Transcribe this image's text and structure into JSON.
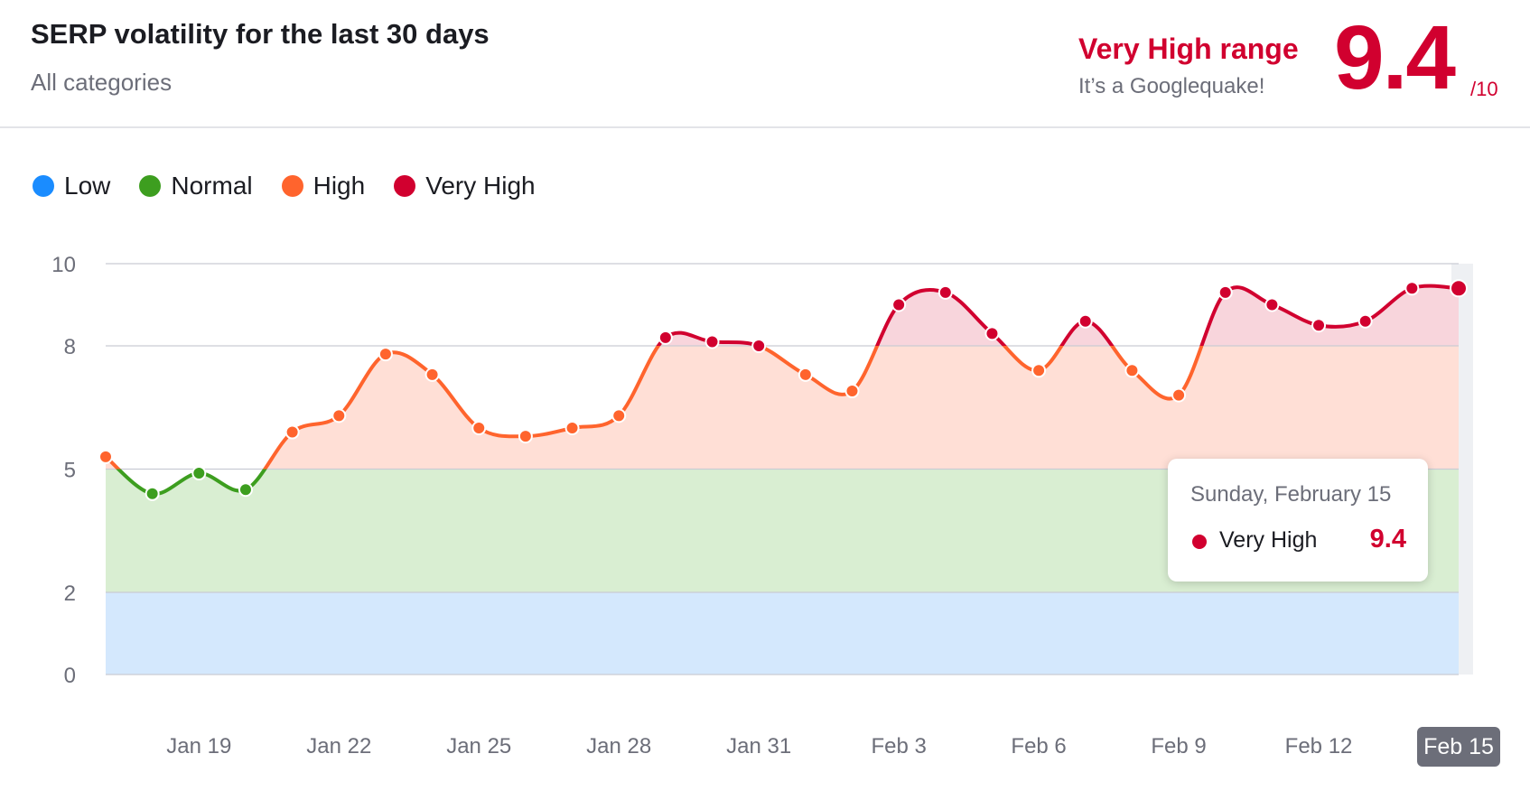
{
  "header": {
    "title": "SERP volatility for the last 30 days",
    "subtitle": "All categories",
    "range_label": "Very High range",
    "range_desc": "It’s a Googlequake!",
    "score": "9.4",
    "score_max": "/10"
  },
  "legend": [
    {
      "label": "Low",
      "color": "#1a8cff"
    },
    {
      "label": "Normal",
      "color": "#3d9e1f"
    },
    {
      "label": "High",
      "color": "#ff642d"
    },
    {
      "label": "Very High",
      "color": "#d1002f"
    }
  ],
  "tooltip": {
    "date": "Sunday, February 15",
    "label": "Very High",
    "value": "9.4"
  },
  "chart_data": {
    "type": "area",
    "title": "SERP volatility for the last 30 days",
    "xlabel": "",
    "ylabel": "",
    "ylim": [
      0,
      10
    ],
    "y_ticks": [
      0,
      2,
      5,
      8,
      10
    ],
    "x_tick_labels": [
      "Jan 19",
      "Jan 22",
      "Jan 25",
      "Jan 28",
      "Jan 31",
      "Feb 3",
      "Feb 6",
      "Feb 9",
      "Feb 12",
      "Feb 15"
    ],
    "x": [
      "Jan 17",
      "Jan 18",
      "Jan 19",
      "Jan 20",
      "Jan 21",
      "Jan 22",
      "Jan 23",
      "Jan 24",
      "Jan 25",
      "Jan 26",
      "Jan 27",
      "Jan 28",
      "Jan 29",
      "Jan 30",
      "Jan 31",
      "Feb 1",
      "Feb 2",
      "Feb 3",
      "Feb 4",
      "Feb 5",
      "Feb 6",
      "Feb 7",
      "Feb 8",
      "Feb 9",
      "Feb 10",
      "Feb 11",
      "Feb 12",
      "Feb 13",
      "Feb 14",
      "Feb 15"
    ],
    "values": [
      5.3,
      4.4,
      4.9,
      4.5,
      5.9,
      6.3,
      7.8,
      7.3,
      6.0,
      5.8,
      6.0,
      6.3,
      8.2,
      8.1,
      8.0,
      7.3,
      6.9,
      9.0,
      9.3,
      8.3,
      7.4,
      8.6,
      7.4,
      6.8,
      9.3,
      9.0,
      8.5,
      8.6,
      9.4,
      9.4
    ],
    "bands": [
      {
        "name": "Low",
        "from": 0,
        "to": 2,
        "color": "#d4e8fd"
      },
      {
        "name": "Normal",
        "from": 2,
        "to": 5,
        "color": "#d9eed2"
      },
      {
        "name": "High",
        "from": 5,
        "to": 8,
        "color": "#ffdfd6"
      },
      {
        "name": "Very High",
        "from": 8,
        "to": 10,
        "color": "#f8d5dc"
      }
    ],
    "colors": {
      "low": "#1a8cff",
      "normal": "#3d9e1f",
      "high": "#ff642d",
      "very_high": "#d1002f"
    },
    "grid": true,
    "legend_position": "top-left",
    "highlighted": "Feb 15"
  }
}
